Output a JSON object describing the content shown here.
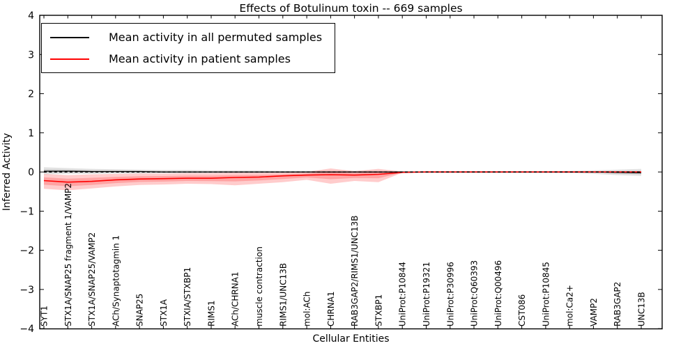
{
  "chart_data": {
    "type": "line",
    "title": "Effects of Botulinum toxin -- 669 samples",
    "xlabel": "Cellular Entities",
    "ylabel": "Inferred Activity",
    "ylim": [
      -4,
      4
    ],
    "y_tick_labels": [
      "4",
      "3",
      "2",
      "1",
      "0",
      "−1",
      "−2",
      "−3",
      "−4"
    ],
    "y_tick_values": [
      4,
      3,
      2,
      1,
      0,
      -1,
      -2,
      -3,
      -4
    ],
    "grid": false,
    "legend_position": "upper left",
    "zero_line": {
      "style": "dashed",
      "color": "#000000",
      "y": 0
    },
    "categories": [
      "SYT1",
      "STX1A/SNAP25 fragment 1/VAMP2",
      "STX1A/SNAP25/VAMP2",
      "ACh/Synaptotagmin 1",
      "SNAP25",
      "STX1A",
      "STXIA/STXBP1",
      "RIMS1",
      "ACh/CHRNA1",
      "muscle contraction",
      "RIMS1/UNC13B",
      "mol:ACh",
      "CHRNA1",
      "RAB3GAP2/RIMS1/UNC13B",
      "STXBP1",
      "UniProt:P10844",
      "UniProt:P19321",
      "UniProt:P30996",
      "UniProt:Q60393",
      "UniProt:Q00496",
      "CST086",
      "UniProt:P10845",
      "mol:Ca2+",
      "VAMP2",
      "RAB3GAP2",
      "UNC13B"
    ],
    "series": [
      {
        "name": "Mean activity in all permuted samples",
        "color": "#000000",
        "band_color": "rgba(60,60,60,0.14)",
        "values": [
          0.02,
          0.02,
          0.01,
          0.01,
          0.01,
          0.0,
          0.0,
          0.0,
          0.0,
          0.0,
          0.0,
          0.0,
          0.0,
          0.0,
          0.0,
          0.0,
          0.0,
          0.0,
          0.0,
          0.0,
          0.0,
          0.0,
          0.0,
          0.0,
          -0.01,
          -0.02
        ],
        "band_upper": [
          0.12,
          0.1,
          0.08,
          0.07,
          0.06,
          0.05,
          0.05,
          0.04,
          0.04,
          0.04,
          0.03,
          0.03,
          0.03,
          0.03,
          0.03,
          0.02,
          0.02,
          0.02,
          0.02,
          0.02,
          0.02,
          0.02,
          0.03,
          0.04,
          0.06,
          0.08
        ],
        "band_lower": [
          -0.06,
          -0.05,
          -0.05,
          -0.04,
          -0.04,
          -0.03,
          -0.03,
          -0.03,
          -0.03,
          -0.03,
          -0.03,
          -0.02,
          -0.02,
          -0.02,
          -0.02,
          -0.02,
          -0.02,
          -0.02,
          -0.02,
          -0.02,
          -0.02,
          -0.02,
          -0.03,
          -0.05,
          -0.08,
          -0.1
        ]
      },
      {
        "name": "Mean activity in patient samples",
        "color": "#ff0000",
        "band_color": "rgba(255,0,0,0.20)",
        "values": [
          -0.22,
          -0.26,
          -0.24,
          -0.2,
          -0.18,
          -0.17,
          -0.16,
          -0.16,
          -0.14,
          -0.13,
          -0.1,
          -0.08,
          -0.07,
          -0.08,
          -0.06,
          -0.01,
          0.0,
          0.0,
          0.0,
          0.0,
          0.0,
          0.0,
          0.0,
          0.0,
          0.0,
          0.0
        ],
        "band_upper": [
          -0.05,
          -0.08,
          -0.06,
          -0.05,
          -0.04,
          -0.04,
          -0.03,
          -0.03,
          -0.02,
          -0.02,
          -0.02,
          0.0,
          0.09,
          0.02,
          0.08,
          0.01,
          0.01,
          0.01,
          0.01,
          0.01,
          0.01,
          0.01,
          0.01,
          0.01,
          0.01,
          0.01
        ],
        "band_lower": [
          -0.43,
          -0.47,
          -0.42,
          -0.37,
          -0.33,
          -0.32,
          -0.3,
          -0.31,
          -0.34,
          -0.3,
          -0.26,
          -0.2,
          -0.3,
          -0.23,
          -0.26,
          -0.02,
          -0.01,
          -0.01,
          -0.01,
          -0.01,
          -0.01,
          -0.01,
          -0.01,
          -0.01,
          -0.01,
          -0.01
        ]
      }
    ]
  }
}
